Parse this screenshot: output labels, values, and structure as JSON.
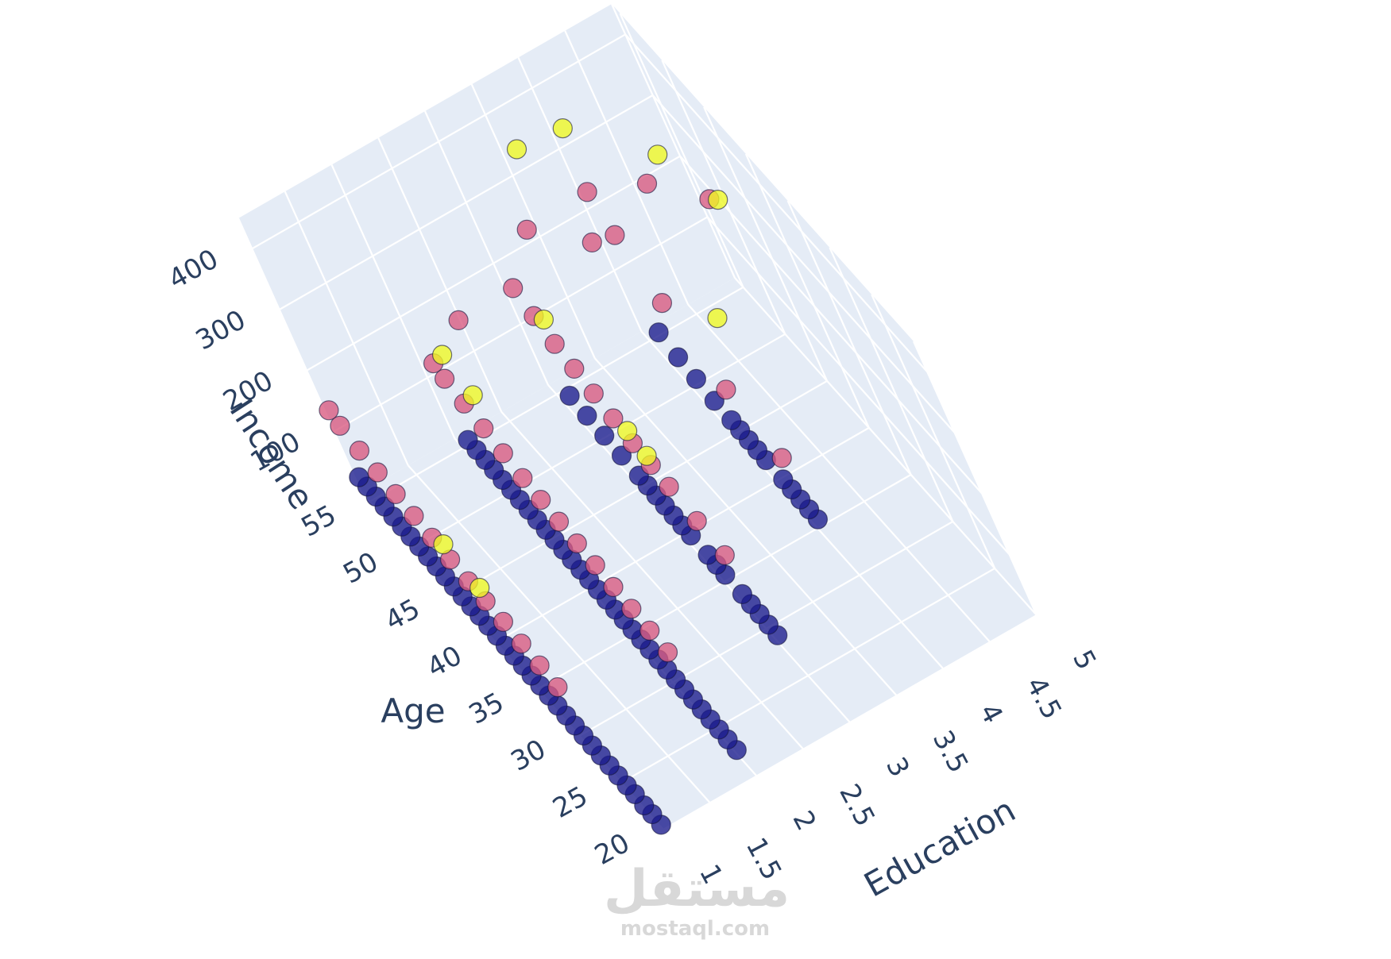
{
  "chart_data": {
    "type": "scatter3d",
    "title": "",
    "axes": {
      "x": {
        "title": "Education",
        "ticks": [
          "1",
          "1.5",
          "2",
          "2.5",
          "3",
          "3.5",
          "4",
          "4.5",
          "5"
        ],
        "range": [
          1,
          5
        ]
      },
      "y": {
        "title": "Age",
        "ticks": [
          "20",
          "25",
          "30",
          "35",
          "40",
          "45",
          "50",
          "55"
        ],
        "range": [
          20,
          56
        ]
      },
      "z": {
        "title": "Income",
        "ticks": [
          "100",
          "200",
          "300",
          "400"
        ],
        "range": [
          0,
          450
        ]
      }
    },
    "grid": true,
    "pane_color": "#e5ecf6",
    "cluster_colors": [
      "#1a1a8c",
      "#d9587f",
      "#f0f921"
    ],
    "series": [
      {
        "name": "",
        "color": "#1a1a8c",
        "points": [
          [
            1,
            20,
            8
          ],
          [
            1,
            21,
            10
          ],
          [
            1,
            22,
            9
          ],
          [
            1,
            23,
            12
          ],
          [
            1,
            24,
            11
          ],
          [
            1,
            25,
            12
          ],
          [
            1,
            26,
            13
          ],
          [
            1,
            27,
            14
          ],
          [
            1,
            28,
            15
          ],
          [
            1,
            29,
            16
          ],
          [
            1,
            30,
            17
          ],
          [
            1,
            31,
            18
          ],
          [
            1,
            32,
            19
          ],
          [
            1,
            33,
            20
          ],
          [
            1,
            34,
            21
          ],
          [
            1,
            35,
            22
          ],
          [
            1,
            36,
            23
          ],
          [
            1,
            37,
            24
          ],
          [
            1,
            38,
            25
          ],
          [
            1,
            39,
            26
          ],
          [
            1,
            40,
            27
          ],
          [
            1,
            41,
            28
          ],
          [
            1,
            42,
            28
          ],
          [
            1,
            43,
            29
          ],
          [
            1,
            44,
            30
          ],
          [
            1,
            45,
            31
          ],
          [
            1,
            46,
            32
          ],
          [
            1,
            47,
            33
          ],
          [
            1,
            48,
            34
          ],
          [
            1,
            49,
            35
          ],
          [
            1,
            50,
            36
          ],
          [
            1,
            51,
            37
          ],
          [
            1,
            52,
            38
          ],
          [
            1,
            53,
            39
          ],
          [
            1,
            54,
            40
          ],
          [
            1,
            55,
            40
          ],
          [
            2,
            22,
            12
          ],
          [
            2,
            23,
            14
          ],
          [
            2,
            24,
            15
          ],
          [
            2,
            25,
            16
          ],
          [
            2,
            26,
            17
          ],
          [
            2,
            27,
            18
          ],
          [
            2,
            28,
            19
          ],
          [
            2,
            29,
            20
          ],
          [
            2,
            30,
            21
          ],
          [
            2,
            31,
            22
          ],
          [
            2,
            32,
            23
          ],
          [
            2,
            33,
            24
          ],
          [
            2,
            34,
            25
          ],
          [
            2,
            35,
            26
          ],
          [
            2,
            36,
            27
          ],
          [
            2,
            37,
            28
          ],
          [
            2,
            38,
            29
          ],
          [
            2,
            39,
            30
          ],
          [
            2,
            40,
            31
          ],
          [
            2,
            41,
            32
          ],
          [
            2,
            42,
            33
          ],
          [
            2,
            43,
            34
          ],
          [
            2,
            44,
            35
          ],
          [
            2,
            45,
            36
          ],
          [
            2,
            46,
            37
          ],
          [
            2,
            47,
            38
          ],
          [
            2,
            48,
            39
          ],
          [
            2,
            49,
            40
          ],
          [
            2,
            50,
            41
          ],
          [
            2,
            51,
            42
          ],
          [
            2,
            52,
            43
          ],
          [
            2,
            53,
            44
          ],
          [
            3,
            28,
            20
          ],
          [
            3,
            29,
            22
          ],
          [
            3,
            30,
            24
          ],
          [
            3,
            31,
            25
          ],
          [
            3,
            32,
            26
          ],
          [
            3,
            34,
            27
          ],
          [
            3,
            35,
            28
          ],
          [
            3,
            36,
            29
          ],
          [
            3,
            38,
            30
          ],
          [
            3,
            39,
            31
          ],
          [
            3,
            40,
            32
          ],
          [
            3,
            41,
            33
          ],
          [
            3,
            42,
            34
          ],
          [
            3,
            43,
            35
          ],
          [
            3,
            44,
            36
          ],
          [
            3,
            46,
            38
          ],
          [
            3,
            48,
            40
          ],
          [
            3,
            50,
            42
          ],
          [
            3,
            52,
            44
          ],
          [
            4,
            34,
            30
          ],
          [
            4,
            35,
            31
          ],
          [
            4,
            36,
            32
          ],
          [
            4,
            37,
            33
          ],
          [
            4,
            38,
            34
          ],
          [
            4,
            40,
            35
          ],
          [
            4,
            41,
            36
          ],
          [
            4,
            42,
            37
          ],
          [
            4,
            43,
            38
          ],
          [
            4,
            44,
            39
          ],
          [
            4,
            46,
            40
          ],
          [
            4,
            48,
            45
          ],
          [
            4,
            50,
            50
          ],
          [
            4,
            52,
            60
          ]
        ]
      },
      {
        "name": "",
        "color": "#d9587f",
        "points": [
          [
            1,
            30,
            80
          ],
          [
            1,
            32,
            85
          ],
          [
            1,
            34,
            90
          ],
          [
            1,
            36,
            95
          ],
          [
            1,
            38,
            98
          ],
          [
            1,
            40,
            100
          ],
          [
            1,
            42,
            105
          ],
          [
            1,
            44,
            110
          ],
          [
            1,
            46,
            115
          ],
          [
            1,
            48,
            120
          ],
          [
            1,
            50,
            125
          ],
          [
            1,
            52,
            130
          ],
          [
            1,
            54,
            140
          ],
          [
            1,
            55,
            150
          ],
          [
            2,
            28,
            80
          ],
          [
            2,
            30,
            85
          ],
          [
            2,
            32,
            90
          ],
          [
            2,
            34,
            95
          ],
          [
            2,
            36,
            100
          ],
          [
            2,
            38,
            105
          ],
          [
            2,
            40,
            110
          ],
          [
            2,
            42,
            115
          ],
          [
            2,
            44,
            120
          ],
          [
            2,
            46,
            130
          ],
          [
            2,
            48,
            140
          ],
          [
            2,
            50,
            150
          ],
          [
            2,
            52,
            160
          ],
          [
            2,
            53,
            170
          ],
          [
            3,
            32,
            90
          ],
          [
            3,
            35,
            100
          ],
          [
            3,
            38,
            110
          ],
          [
            3,
            40,
            115
          ],
          [
            3,
            42,
            120
          ],
          [
            3,
            44,
            130
          ],
          [
            3,
            46,
            140
          ],
          [
            3,
            48,
            150
          ],
          [
            3,
            50,
            160
          ],
          [
            3,
            52,
            175
          ],
          [
            3,
            54,
            190
          ],
          [
            4,
            36,
            100
          ],
          [
            4,
            42,
            120
          ],
          [
            4,
            48,
            170
          ],
          [
            4,
            52,
            220
          ],
          [
            4,
            54,
            260
          ],
          [
            2.2,
            48,
            300
          ],
          [
            3.2,
            50,
            330
          ],
          [
            3.6,
            47,
            320
          ],
          [
            4.4,
            50,
            300
          ],
          [
            4.8,
            48,
            270
          ]
        ]
      },
      {
        "name": "",
        "color": "#f0f921",
        "points": [
          [
            1,
            38,
            120
          ],
          [
            1,
            42,
            130
          ],
          [
            2,
            50,
            230
          ],
          [
            2,
            47,
            210
          ],
          [
            3,
            50,
            200
          ],
          [
            3,
            40,
            130
          ],
          [
            3,
            42,
            140
          ],
          [
            3.6,
            55,
            350
          ],
          [
            4.0,
            53,
            380
          ],
          [
            4.6,
            50,
            330
          ],
          [
            4.8,
            46,
            300
          ],
          [
            4.2,
            42,
            220
          ]
        ]
      }
    ]
  }
}
